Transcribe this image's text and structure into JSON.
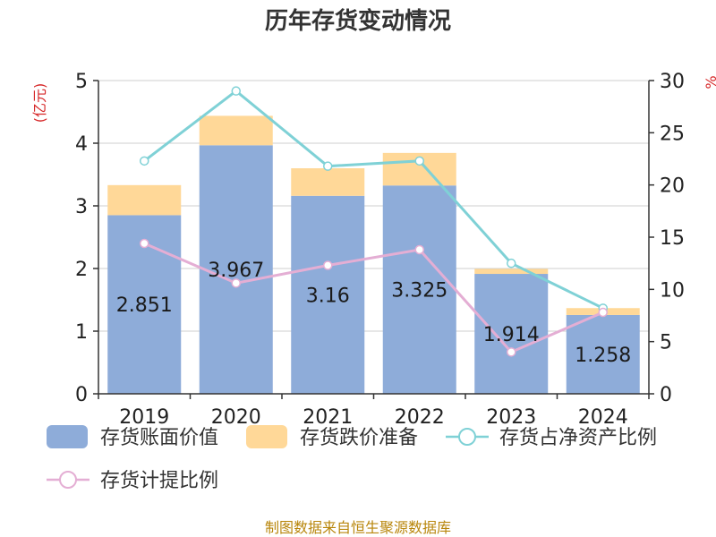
{
  "title": "历年存货变动情况",
  "left_unit": "(亿元)",
  "right_unit": "%",
  "source": "制图数据来自恒生聚源数据库",
  "colors": {
    "book_value": "#8eacd9",
    "impairment": "#ffd898",
    "ratio_net_assets": "#7fd1d6",
    "ratio_provision": "#e4aed4"
  },
  "chart_data": {
    "type": "bar",
    "categories": [
      "2019",
      "2020",
      "2021",
      "2022",
      "2023",
      "2024"
    ],
    "ylim": [
      0,
      5
    ],
    "y_ticks": [
      0,
      1,
      2,
      3,
      4,
      5
    ],
    "y2lim": [
      0,
      30
    ],
    "y2_ticks": [
      0,
      5,
      10,
      15,
      20,
      25,
      30
    ],
    "grid": true,
    "legend_position": "bottom",
    "series": [
      {
        "name": "存货账面价值",
        "type": "bar",
        "stack": "total",
        "axis": "left",
        "values": [
          2.851,
          3.967,
          3.16,
          3.325,
          1.914,
          1.258
        ],
        "labels": [
          "2.851",
          "3.967",
          "3.16",
          "3.325",
          "1.914",
          "1.258"
        ]
      },
      {
        "name": "存货跌价准备",
        "type": "bar",
        "stack": "total",
        "axis": "left",
        "values": [
          0.48,
          0.47,
          0.44,
          0.52,
          0.08,
          0.11
        ]
      },
      {
        "name": "存货占净资产比例",
        "type": "line",
        "axis": "right",
        "values": [
          22.3,
          29.0,
          21.8,
          22.3,
          12.5,
          8.2
        ]
      },
      {
        "name": "存货计提比例",
        "type": "line",
        "axis": "right",
        "values": [
          14.4,
          10.6,
          12.3,
          13.8,
          4.0,
          7.8
        ]
      }
    ]
  }
}
